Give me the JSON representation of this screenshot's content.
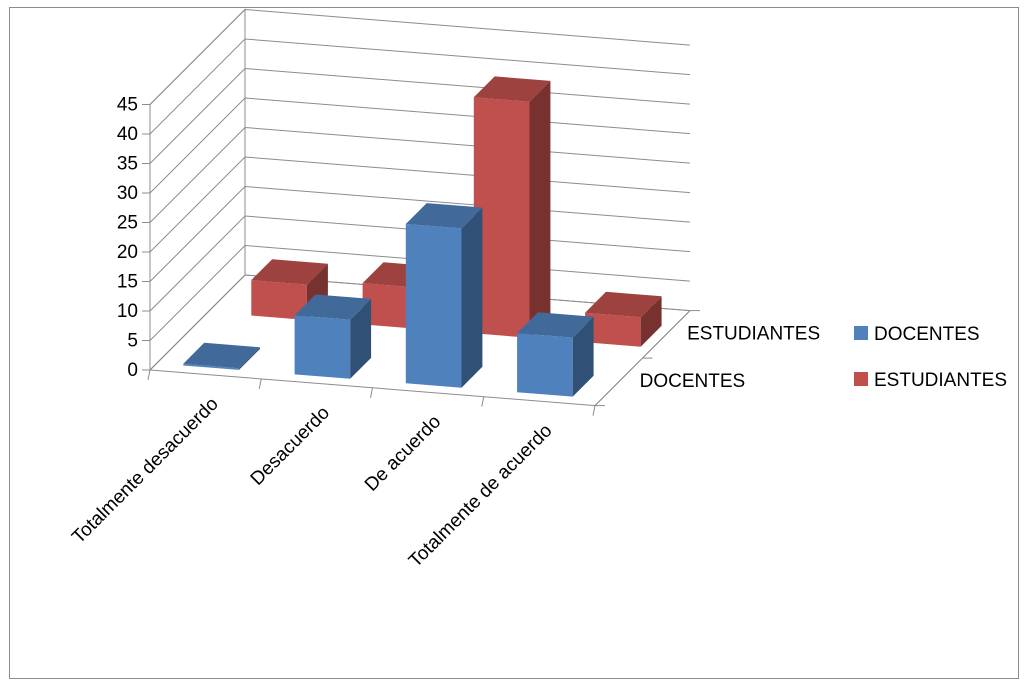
{
  "chart_data": {
    "type": "bar",
    "title": "",
    "xlabel": "",
    "ylabel": "",
    "ylim": [
      0,
      45
    ],
    "yticks": [
      0,
      5,
      10,
      15,
      20,
      25,
      30,
      35,
      40,
      45
    ],
    "categories": [
      "Totalmente desacuerdo",
      "Desacuerdo",
      "De acuerdo",
      "Totalmente de acuerdo"
    ],
    "depth_labels": [
      "DOCENTES",
      "ESTUDIANTES"
    ],
    "series": [
      {
        "name": "DOCENTES",
        "values": [
          0,
          10,
          27,
          10
        ],
        "color": "#4f81bd"
      },
      {
        "name": "ESTUDIANTES",
        "values": [
          6,
          7,
          40,
          5
        ],
        "color": "#c0504d"
      }
    ],
    "grid": true,
    "legend_position": "right",
    "three_d": true
  }
}
